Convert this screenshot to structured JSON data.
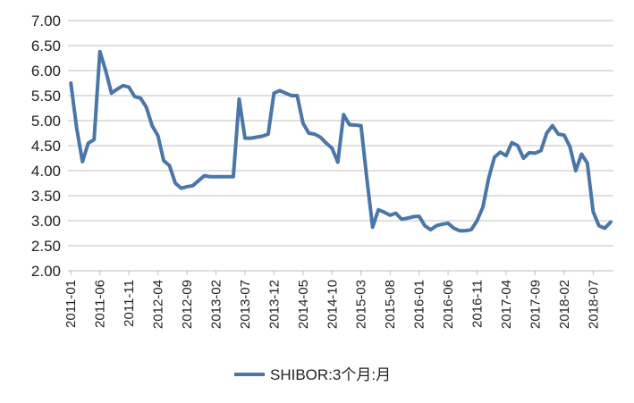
{
  "chart_data": {
    "type": "line",
    "title": "",
    "xlabel": "",
    "ylabel": "",
    "ylim": [
      2.0,
      7.0
    ],
    "yticks": [
      "2.00",
      "2.50",
      "3.00",
      "3.50",
      "4.00",
      "4.50",
      "5.00",
      "5.50",
      "6.00",
      "6.50",
      "7.00"
    ],
    "grid": true,
    "legend_position": "bottom",
    "xtick_labels": [
      "2011-01",
      "2011-06",
      "2011-11",
      "2012-04",
      "2012-09",
      "2013-02",
      "2013-07",
      "2013-12",
      "2014-05",
      "2014-10",
      "2015-03",
      "2015-08",
      "2016-01",
      "2016-06",
      "2016-11",
      "2017-04",
      "2017-09",
      "2018-02",
      "2018-07"
    ],
    "x_start": "2011-01",
    "series": [
      {
        "name": "SHIBOR:3个月:月",
        "color": "#4a76a8",
        "values": [
          5.75,
          4.85,
          4.18,
          4.55,
          4.62,
          6.38,
          6.0,
          5.55,
          5.63,
          5.7,
          5.67,
          5.48,
          5.45,
          5.27,
          4.9,
          4.7,
          4.2,
          4.1,
          3.75,
          3.65,
          3.68,
          3.7,
          3.8,
          3.9,
          3.88,
          3.88,
          3.88,
          3.88,
          3.88,
          5.43,
          4.65,
          4.65,
          4.67,
          4.69,
          4.73,
          5.55,
          5.6,
          5.55,
          5.5,
          5.5,
          4.95,
          4.75,
          4.73,
          4.67,
          4.55,
          4.45,
          4.17,
          5.12,
          4.92,
          4.91,
          4.9,
          3.85,
          2.87,
          3.22,
          3.17,
          3.11,
          3.15,
          3.03,
          3.05,
          3.08,
          3.09,
          2.9,
          2.82,
          2.9,
          2.93,
          2.95,
          2.85,
          2.8,
          2.8,
          2.82,
          3.0,
          3.27,
          3.85,
          4.27,
          4.37,
          4.3,
          4.56,
          4.5,
          4.25,
          4.36,
          4.35,
          4.4,
          4.75,
          4.9,
          4.73,
          4.71,
          4.48,
          4.0,
          4.33,
          4.15,
          3.18,
          2.9,
          2.85,
          2.97
        ]
      }
    ]
  }
}
